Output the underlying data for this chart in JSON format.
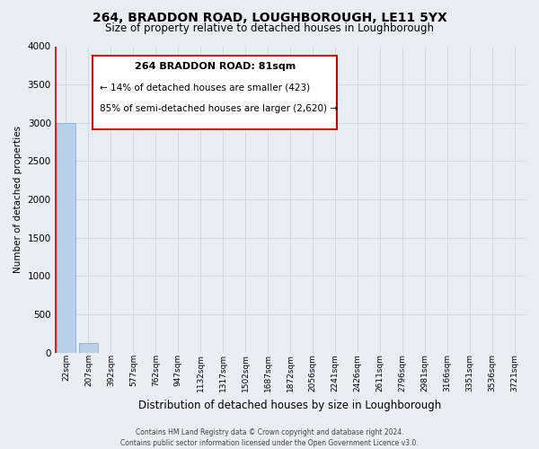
{
  "title_line1": "264, BRADDON ROAD, LOUGHBOROUGH, LE11 5YX",
  "title_line2": "Size of property relative to detached houses in Loughborough",
  "xlabel": "Distribution of detached houses by size in Loughborough",
  "ylabel": "Number of detached properties",
  "bar_labels": [
    "22sqm",
    "207sqm",
    "392sqm",
    "577sqm",
    "762sqm",
    "947sqm",
    "1132sqm",
    "1317sqm",
    "1502sqm",
    "1687sqm",
    "1872sqm",
    "2056sqm",
    "2241sqm",
    "2426sqm",
    "2611sqm",
    "2796sqm",
    "2981sqm",
    "3166sqm",
    "3351sqm",
    "3536sqm",
    "3721sqm"
  ],
  "bar_values": [
    3000,
    120,
    0,
    0,
    0,
    0,
    0,
    0,
    0,
    0,
    0,
    0,
    0,
    0,
    0,
    0,
    0,
    0,
    0,
    0,
    0
  ],
  "bar_color": "#b8d0e8",
  "bar_edge_color": "#8ab0d0",
  "property_line_color": "#cc0000",
  "property_line_x": -0.45,
  "ylim": [
    0,
    4000
  ],
  "yticks": [
    0,
    500,
    1000,
    1500,
    2000,
    2500,
    3000,
    3500,
    4000
  ],
  "annotation_box_facecolor": "#ffffff",
  "annotation_box_edgecolor": "#cc0000",
  "annotation_title": "264 BRADDON ROAD: 81sqm",
  "annotation_line1": "← 14% of detached houses are smaller (423)",
  "annotation_line2": "85% of semi-detached houses are larger (2,620) →",
  "footer_line1": "Contains HM Land Registry data © Crown copyright and database right 2024.",
  "footer_line2": "Contains public sector information licensed under the Open Government Licence v3.0.",
  "bg_color": "#e8eef4",
  "plot_bg_color": "#e8eef4",
  "grid_color": "#c8d4e0",
  "title1_fontsize": 10,
  "title2_fontsize": 8.5,
  "xlabel_fontsize": 8.5,
  "ylabel_fontsize": 7.5,
  "tick_fontsize": 6.5,
  "ytick_fontsize": 7.5,
  "ann_title_fontsize": 8,
  "ann_text_fontsize": 7.5,
  "footer_fontsize": 5.5
}
